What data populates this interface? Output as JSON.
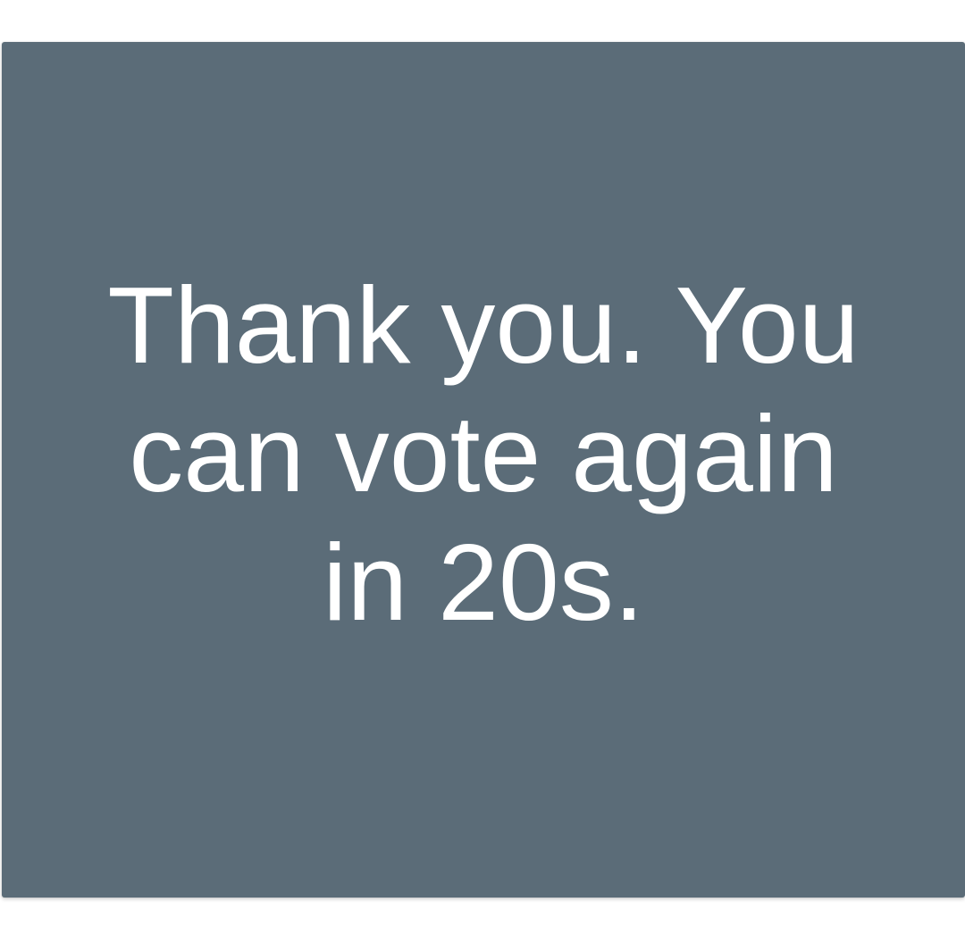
{
  "card": {
    "message": "Thank you. You can vote again in 20s.",
    "background_color": "#5b6c78",
    "text_color": "#ffffff"
  }
}
